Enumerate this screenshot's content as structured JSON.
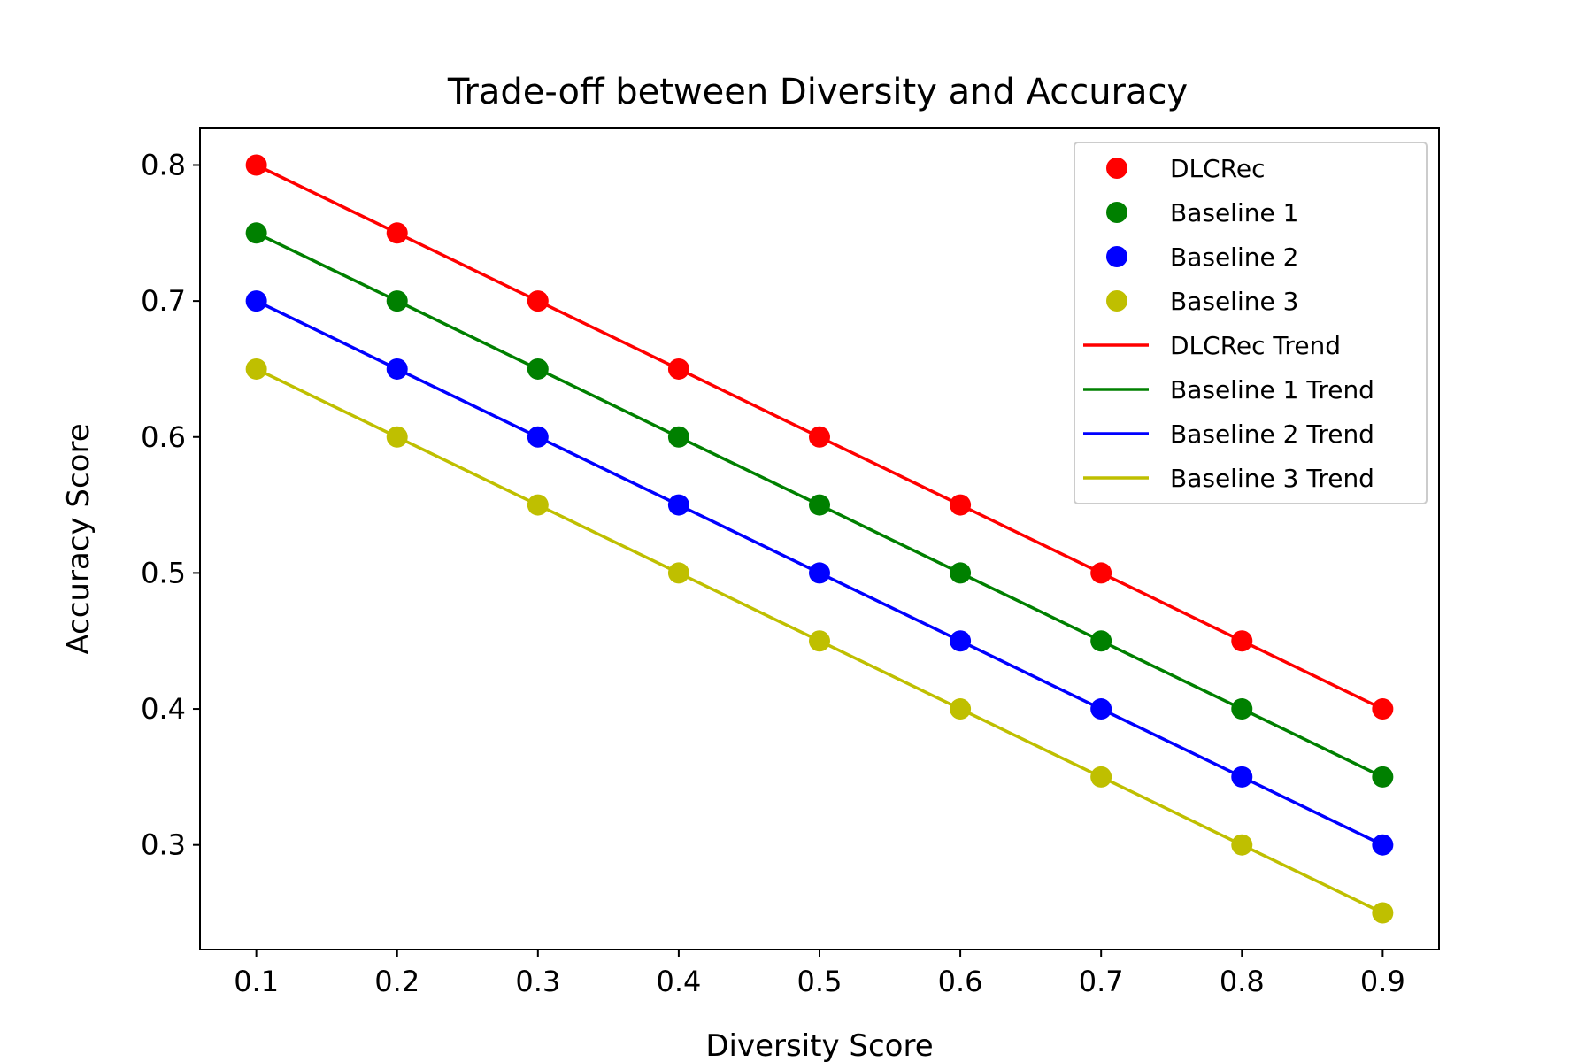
{
  "chart_data": {
    "type": "line",
    "title": "Trade-off between Diversity and Accuracy",
    "xlabel": "Diversity Score",
    "ylabel": "Accuracy Score",
    "x": [
      0.1,
      0.2,
      0.3,
      0.4,
      0.5,
      0.6,
      0.7,
      0.8,
      0.9
    ],
    "xlim": [
      0.06,
      0.94
    ],
    "ylim": [
      0.223,
      0.827
    ],
    "xticks": [
      "0.1",
      "0.2",
      "0.3",
      "0.4",
      "0.5",
      "0.6",
      "0.7",
      "0.8",
      "0.9"
    ],
    "yticks": [
      "0.3",
      "0.4",
      "0.5",
      "0.6",
      "0.7",
      "0.8"
    ],
    "grid": false,
    "legend_position": "top-right",
    "series": [
      {
        "name": "DLCRec",
        "trend_name": "DLCRec Trend",
        "color": "#ff0000",
        "values": [
          0.8,
          0.75,
          0.7,
          0.65,
          0.6,
          0.55,
          0.5,
          0.45,
          0.4
        ]
      },
      {
        "name": "Baseline 1",
        "trend_name": "Baseline 1 Trend",
        "color": "#008000",
        "values": [
          0.75,
          0.7,
          0.65,
          0.6,
          0.55,
          0.5,
          0.45,
          0.4,
          0.35
        ]
      },
      {
        "name": "Baseline 2",
        "trend_name": "Baseline 2 Trend",
        "color": "#0000ff",
        "values": [
          0.7,
          0.65,
          0.6,
          0.55,
          0.5,
          0.45,
          0.4,
          0.35,
          0.3
        ]
      },
      {
        "name": "Baseline 3",
        "trend_name": "Baseline 3 Trend",
        "color": "#bfbf00",
        "values": [
          0.65,
          0.6,
          0.55,
          0.5,
          0.45,
          0.4,
          0.35,
          0.3,
          0.25
        ]
      }
    ]
  }
}
